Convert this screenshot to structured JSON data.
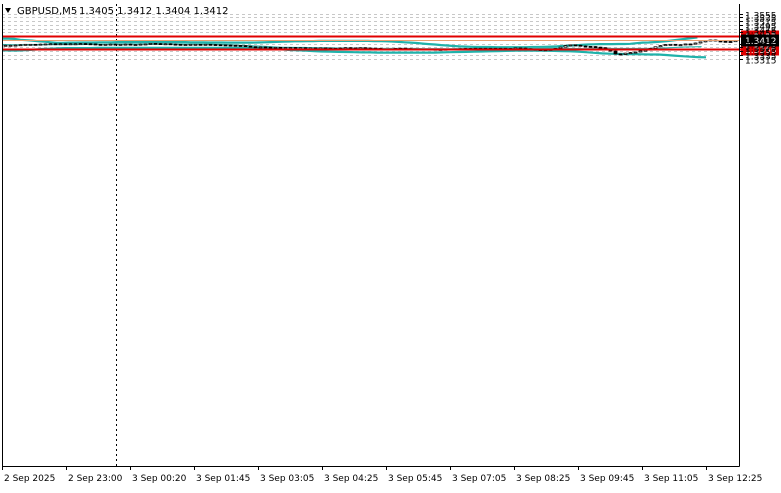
{
  "header": {
    "symbol": "GBPUSD,M5",
    "ohlc": "1.3405 1.3412 1.3404 1.3412",
    "arrow": "triangle-down-icon"
  },
  "colors": {
    "background": "#ffffff",
    "grid": "#c8c8c8",
    "axis": "#000000",
    "candle": "#000000",
    "bollinger": "#20b2aa",
    "ma": "#3cb8b0",
    "level_line": "#e00000",
    "bid_line": "#e8a070",
    "price_box": "#000000",
    "level_box": "#e00000"
  },
  "chart_data": {
    "type": "candlestick",
    "title": "GBPUSD,M5",
    "ylim": [
      1.3305,
      1.3565
    ],
    "y_ticks": [
      "1.3555",
      "1.3535",
      "1.3515",
      "1.3495",
      "1.3475",
      "1.3455",
      "1.3395",
      "1.3375",
      "1.3355",
      "1.3335",
      "1.3315"
    ],
    "x_ticks": [
      "2 Sep 2025",
      "2 Sep 23:00",
      "3 Sep 00:20",
      "3 Sep 01:45",
      "3 Sep 03:05",
      "3 Sep 04:25",
      "3 Sep 05:45",
      "3 Sep 07:05",
      "3 Sep 08:25",
      "3 Sep 09:45",
      "3 Sep 11:05",
      "3 Sep 12:25"
    ],
    "levels": [
      {
        "label": "1.3437",
        "value": 1.3437
      },
      {
        "label": "1.3366",
        "value": 1.3366
      }
    ],
    "current_price": {
      "label": "1.3412",
      "value": 1.3412
    },
    "bid_line_value": 1.3413,
    "candles_close": [
      1.3386,
      1.3386,
      1.3387,
      1.3389,
      1.3391,
      1.3391,
      1.339,
      1.3392,
      1.3393,
      1.3394,
      1.3392,
      1.3394,
      1.3393,
      1.3394,
      1.3394,
      1.3395,
      1.3394,
      1.3393,
      1.3391,
      1.339,
      1.3391,
      1.3392,
      1.339,
      1.3391,
      1.3392,
      1.339,
      1.339,
      1.3392,
      1.3393,
      1.3396,
      1.3395,
      1.3394,
      1.3394,
      1.3392,
      1.3391,
      1.339,
      1.339,
      1.3391,
      1.3391,
      1.339,
      1.3391,
      1.339,
      1.3389,
      1.3388,
      1.3387,
      1.3386,
      1.3385,
      1.3384,
      1.3381,
      1.3378,
      1.3377,
      1.3377,
      1.3376,
      1.3375,
      1.3375,
      1.3374,
      1.3374,
      1.3374,
      1.3373,
      1.3373,
      1.3372,
      1.3372,
      1.3371,
      1.3372,
      1.3371,
      1.337,
      1.337,
      1.3371,
      1.3373,
      1.3372,
      1.3371,
      1.3373,
      1.3371,
      1.337,
      1.3369,
      1.3366,
      1.3366,
      1.3367,
      1.3369,
      1.337,
      1.3368,
      1.3367,
      1.3366,
      1.3366,
      1.3366,
      1.3365,
      1.3364,
      1.3364,
      1.3365,
      1.3366,
      1.3367,
      1.3368,
      1.3369,
      1.3369,
      1.337,
      1.337,
      1.337,
      1.337,
      1.3369,
      1.337,
      1.3369,
      1.3369,
      1.3372,
      1.3371,
      1.3368,
      1.3365,
      1.3363,
      1.3362,
      1.3362,
      1.3364,
      1.3369,
      1.3376,
      1.3384,
      1.3388,
      1.3386,
      1.3382,
      1.338,
      1.3379,
      1.3376,
      1.3373,
      1.3366,
      1.3355,
      1.334,
      1.3337,
      1.3344,
      1.3347,
      1.335,
      1.3356,
      1.336,
      1.3369,
      1.3378,
      1.3384,
      1.339,
      1.3391,
      1.3386,
      1.3389,
      1.3393,
      1.3392,
      1.3398,
      1.3404,
      1.341,
      1.3414,
      1.3409,
      1.3407,
      1.3406,
      1.3405,
      1.3412
    ],
    "series": [
      {
        "name": "",
        "values": [
          1.3421,
          1.3421,
          1.342,
          1.3415,
          1.3413,
          1.3411,
          1.3407,
          1.3405,
          1.3402,
          1.3399,
          1.3399,
          1.34,
          1.34,
          1.3401,
          1.3401,
          1.3401,
          1.3402,
          1.3402,
          1.3402,
          1.3403,
          1.3403,
          1.3403,
          1.3403,
          1.3403,
          1.3403,
          1.3403,
          1.3403,
          1.3403,
          1.3403,
          1.3403,
          1.3403,
          1.3402,
          1.3402,
          1.3402,
          1.3401,
          1.3401,
          1.3401,
          1.34,
          1.34,
          1.34,
          1.34,
          1.34,
          1.3401,
          1.3402,
          1.3403,
          1.3404,
          1.3405,
          1.3406,
          1.3407,
          1.3407,
          1.3408,
          1.3408,
          1.3409,
          1.3409,
          1.3409,
          1.3409,
          1.3409,
          1.3409,
          1.3409,
          1.3409,
          1.3409,
          1.3408,
          1.3408,
          1.3407,
          1.3406,
          1.3404,
          1.3402,
          1.34,
          1.3398,
          1.3395,
          1.3392,
          1.339,
          1.3387,
          1.3385,
          1.3382,
          1.338,
          1.3379,
          1.3378,
          1.3377,
          1.3377,
          1.3377,
          1.3376,
          1.3376,
          1.3376,
          1.3376,
          1.3376,
          1.3376,
          1.3377,
          1.3377,
          1.3378,
          1.3379,
          1.338,
          1.3382,
          1.3384,
          1.3386,
          1.3388,
          1.339,
          1.3391,
          1.3392,
          1.3392,
          1.3392,
          1.3393,
          1.3393,
          1.3394,
          1.3397,
          1.34,
          1.3401,
          1.3403,
          1.3405,
          1.3408,
          1.3412,
          1.3416,
          1.342,
          1.3424,
          1.3428
        ]
      },
      {
        "name": "",
        "values": [
          1.339,
          1.3389,
          1.3388,
          1.3388,
          1.3388,
          1.3389,
          1.339,
          1.339,
          1.339,
          1.339,
          1.339,
          1.3391,
          1.3391,
          1.3391,
          1.3392,
          1.3392,
          1.3392,
          1.3392,
          1.3392,
          1.3392,
          1.3392,
          1.3392,
          1.3392,
          1.3392,
          1.3392,
          1.3392,
          1.3392,
          1.3391,
          1.339,
          1.3388,
          1.3386,
          1.3384,
          1.3382,
          1.338,
          1.3378,
          1.3376,
          1.3375,
          1.3374,
          1.3374,
          1.3373,
          1.3372,
          1.3372,
          1.3371,
          1.3371,
          1.337,
          1.337,
          1.3369,
          1.3369,
          1.3369,
          1.3369,
          1.3369,
          1.3369,
          1.3369,
          1.3368,
          1.3368,
          1.3368,
          1.3367,
          1.3368,
          1.3368,
          1.3368,
          1.3369,
          1.3369,
          1.337,
          1.337,
          1.3371,
          1.3372,
          1.3372,
          1.3372,
          1.3372,
          1.3371,
          1.337,
          1.3369,
          1.3369,
          1.3368,
          1.3368,
          1.3369,
          1.3369,
          1.3369,
          1.3369,
          1.3369,
          1.3369,
          1.3369,
          1.337,
          1.3371,
          1.3373,
          1.3375,
          1.3377,
          1.3378,
          1.3379
        ]
      },
      {
        "name": "",
        "values": [
          1.3359,
          1.3358,
          1.3358,
          1.336,
          1.3363,
          1.3366,
          1.3368,
          1.337,
          1.3371,
          1.3371,
          1.3371,
          1.3371,
          1.3372,
          1.3372,
          1.3372,
          1.3372,
          1.3372,
          1.3372,
          1.3372,
          1.3372,
          1.3372,
          1.3372,
          1.3372,
          1.3372,
          1.3372,
          1.3372,
          1.3372,
          1.3372,
          1.3372,
          1.3372,
          1.3372,
          1.3372,
          1.3371,
          1.3369,
          1.3367,
          1.3364,
          1.3361,
          1.3359,
          1.3357,
          1.3355,
          1.3353,
          1.3352,
          1.3351,
          1.335,
          1.3349,
          1.3348,
          1.3348,
          1.3347,
          1.3347,
          1.3347,
          1.3347,
          1.3347,
          1.3347,
          1.3347,
          1.3347,
          1.3348,
          1.3349,
          1.335,
          1.3351,
          1.3352,
          1.3353,
          1.3354,
          1.3355,
          1.3356,
          1.3357,
          1.3357,
          1.3357,
          1.3357,
          1.3357,
          1.3356,
          1.3355,
          1.3354,
          1.3352,
          1.3349,
          1.3346,
          1.3343,
          1.3341,
          1.334,
          1.3339,
          1.3339,
          1.3338,
          1.3337,
          1.3337,
          1.3334,
          1.3331,
          1.3328,
          1.3325,
          1.3323,
          1.3322
        ]
      }
    ]
  }
}
